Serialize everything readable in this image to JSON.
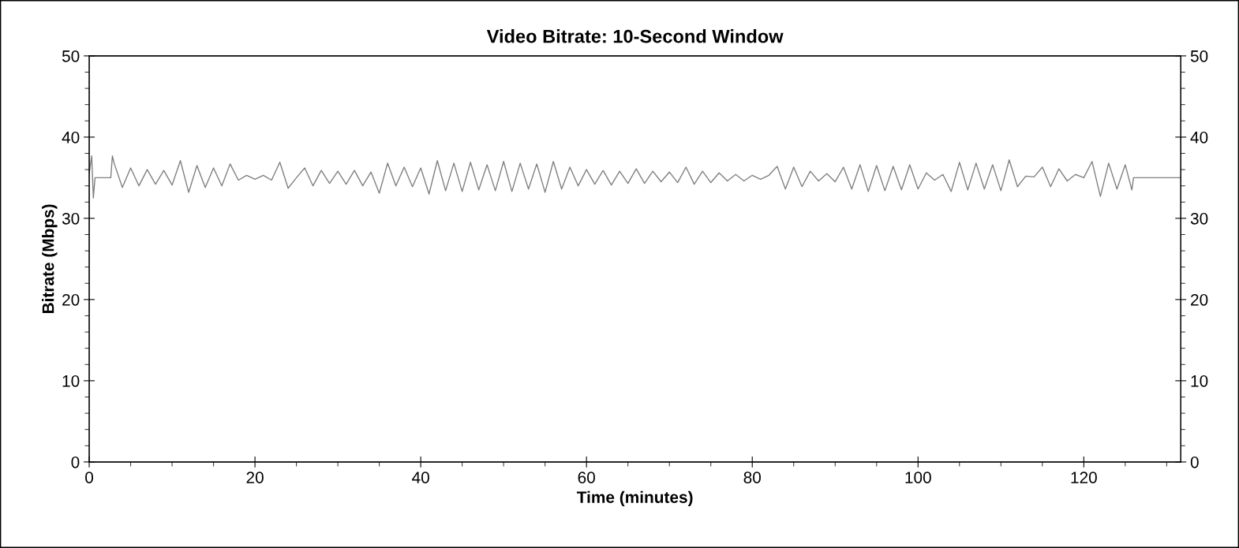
{
  "chart_data": {
    "type": "line",
    "title": "Video Bitrate: 10-Second Window",
    "xlabel": "Time (minutes)",
    "ylabel": "Bitrate (Mbps)",
    "x": [
      0,
      0.3,
      0.5,
      0.7,
      2.6,
      2.8,
      3,
      4,
      5,
      6,
      7,
      8,
      9,
      10,
      11,
      12,
      13,
      14,
      15,
      16,
      17,
      18,
      19,
      20,
      21,
      22,
      23,
      24,
      25,
      26,
      27,
      28,
      29,
      30,
      31,
      32,
      33,
      34,
      35,
      36,
      37,
      38,
      39,
      40,
      41,
      42,
      43,
      44,
      45,
      46,
      47,
      48,
      49,
      50,
      51,
      52,
      53,
      54,
      55,
      56,
      57,
      58,
      59,
      60,
      61,
      62,
      63,
      64,
      65,
      66,
      67,
      68,
      69,
      70,
      71,
      72,
      73,
      74,
      75,
      76,
      77,
      78,
      79,
      80,
      81,
      82,
      83,
      84,
      85,
      86,
      87,
      88,
      89,
      90,
      91,
      92,
      93,
      94,
      95,
      96,
      97,
      98,
      99,
      100,
      101,
      102,
      103,
      104,
      105,
      106,
      107,
      108,
      109,
      110,
      111,
      112,
      113,
      114,
      115,
      116,
      117,
      118,
      119,
      120,
      121,
      122,
      123,
      124,
      125,
      125.8,
      126,
      131.7
    ],
    "series": [
      {
        "color": "#808080",
        "values": [
          35.5,
          37.7,
          32.5,
          35,
          35,
          37.7,
          36.8,
          33.8,
          36.2,
          34.0,
          36.0,
          34.2,
          35.9,
          34.1,
          37.1,
          33.2,
          36.5,
          33.8,
          36.2,
          34.0,
          36.7,
          34.7,
          35.3,
          34.8,
          35.3,
          34.7,
          36.9,
          33.7,
          35.0,
          36.2,
          34.0,
          35.9,
          34.3,
          35.8,
          34.2,
          35.9,
          34.0,
          35.7,
          33.1,
          36.8,
          34.0,
          36.3,
          33.9,
          36.2,
          33.0,
          37.1,
          33.4,
          36.8,
          33.3,
          36.9,
          33.5,
          36.6,
          33.4,
          37.0,
          33.3,
          36.8,
          33.6,
          36.7,
          33.2,
          37.0,
          33.6,
          36.3,
          34.0,
          36.0,
          34.2,
          35.9,
          34.1,
          35.8,
          34.3,
          36.1,
          34.3,
          35.8,
          34.5,
          35.7,
          34.4,
          36.3,
          34.2,
          35.8,
          34.4,
          35.6,
          34.6,
          35.4,
          34.6,
          35.3,
          34.8,
          35.3,
          36.4,
          33.6,
          36.3,
          33.9,
          35.8,
          34.6,
          35.5,
          34.5,
          36.3,
          33.6,
          36.6,
          33.3,
          36.5,
          33.4,
          36.4,
          33.5,
          36.6,
          33.6,
          35.6,
          34.7,
          35.4,
          33.3,
          36.9,
          33.5,
          36.8,
          33.6,
          36.6,
          33.4,
          37.2,
          33.9,
          35.2,
          35.1,
          36.3,
          33.9,
          36.1,
          34.6,
          35.4,
          35.0,
          37.0,
          32.7,
          36.8,
          33.6,
          36.6,
          33.5,
          35,
          35
        ]
      }
    ],
    "xlim": [
      0,
      131.7
    ],
    "xticks": [
      0,
      {
        "value": 5,
        "label": null
      },
      {
        "value": 10,
        "label": null
      },
      {
        "value": 15,
        "label": null
      },
      20,
      {
        "value": 25,
        "label": null
      },
      {
        "value": 30,
        "label": null
      },
      {
        "value": 35,
        "label": null
      },
      40,
      {
        "value": 45,
        "label": null
      },
      {
        "value": 50,
        "label": null
      },
      {
        "value": 55,
        "label": null
      },
      60,
      {
        "value": 65,
        "label": null
      },
      {
        "value": 70,
        "label": null
      },
      {
        "value": 75,
        "label": null
      },
      80,
      {
        "value": 85,
        "label": null
      },
      {
        "value": 90,
        "label": null
      },
      {
        "value": 95,
        "label": null
      },
      100,
      {
        "value": 105,
        "label": null
      },
      {
        "value": 110,
        "label": null
      },
      {
        "value": 115,
        "label": null
      },
      120,
      {
        "value": 125,
        "label": null
      },
      {
        "value": 130,
        "label": null
      }
    ],
    "ylim": [
      0,
      50
    ],
    "yticks": [
      0,
      {
        "value": 2,
        "label": null
      },
      {
        "value": 4,
        "label": null
      },
      {
        "value": 6,
        "label": null
      },
      {
        "value": 8,
        "label": null
      },
      10,
      {
        "value": 12,
        "label": null
      },
      {
        "value": 14,
        "label": null
      },
      {
        "value": 16,
        "label": null
      },
      {
        "value": 18,
        "label": null
      },
      20,
      {
        "value": 22,
        "label": null
      },
      {
        "value": 24,
        "label": null
      },
      {
        "value": 26,
        "label": null
      },
      {
        "value": 28,
        "label": null
      },
      30,
      {
        "value": 32,
        "label": null
      },
      {
        "value": 34,
        "label": null
      },
      {
        "value": 36,
        "label": null
      },
      {
        "value": 38,
        "label": null
      },
      40,
      {
        "value": 42,
        "label": null
      },
      {
        "value": 44,
        "label": null
      },
      {
        "value": 46,
        "label": null
      },
      {
        "value": 48,
        "label": null
      },
      50
    ],
    "y2lim": [
      0,
      50
    ],
    "y2ticks": [
      0,
      {
        "value": 2,
        "label": null
      },
      {
        "value": 4,
        "label": null
      },
      {
        "value": 6,
        "label": null
      },
      {
        "value": 8,
        "label": null
      },
      10,
      {
        "value": 12,
        "label": null
      },
      {
        "value": 14,
        "label": null
      },
      {
        "value": 16,
        "label": null
      },
      {
        "value": 18,
        "label": null
      },
      20,
      {
        "value": 22,
        "label": null
      },
      {
        "value": 24,
        "label": null
      },
      {
        "value": 26,
        "label": null
      },
      {
        "value": 28,
        "label": null
      },
      30,
      {
        "value": 32,
        "label": null
      },
      {
        "value": 34,
        "label": null
      },
      {
        "value": 36,
        "label": null
      },
      {
        "value": 38,
        "label": null
      },
      40,
      {
        "value": 42,
        "label": null
      },
      {
        "value": 44,
        "label": null
      },
      {
        "value": 46,
        "label": null
      },
      {
        "value": 48,
        "label": null
      },
      50
    ],
    "grid": false
  }
}
